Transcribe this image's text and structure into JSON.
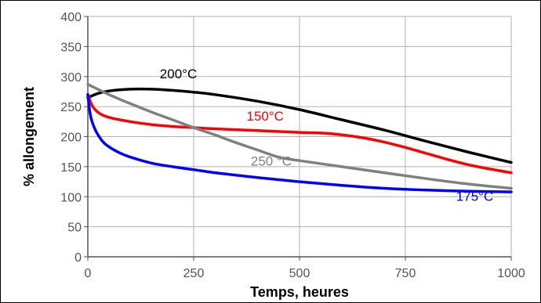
{
  "chart_data": {
    "type": "line",
    "xlabel": "Temps, heures",
    "ylabel": "% allongement",
    "xlim": [
      0,
      1000
    ],
    "ylim": [
      0,
      400
    ],
    "xticks": [
      0,
      250,
      500,
      750,
      1000
    ],
    "yticks": [
      0,
      50,
      100,
      150,
      200,
      250,
      300,
      350,
      400
    ],
    "grid": true,
    "series": [
      {
        "name": "200°C",
        "color": "#000000",
        "x": [
          0,
          25,
          50,
          100,
          150,
          200,
          250,
          300,
          400,
          500,
          600,
          700,
          800,
          900,
          1000
        ],
        "y": [
          265,
          272,
          276,
          279,
          279,
          277,
          274,
          270,
          259,
          245,
          228,
          211,
          192,
          174,
          157
        ]
      },
      {
        "name": "150°C",
        "color": "#ff0000",
        "x": [
          0,
          10,
          25,
          50,
          100,
          150,
          200,
          250,
          300,
          400,
          500,
          550,
          600,
          650,
          700,
          750,
          800,
          850,
          900,
          950,
          1000
        ],
        "y": [
          270,
          252,
          240,
          232,
          225,
          220,
          217,
          215,
          213,
          210,
          207,
          206,
          203,
          198,
          191,
          182,
          172,
          162,
          153,
          146,
          140
        ]
      },
      {
        "name": "250 °C",
        "color": "#808080",
        "x": [
          0,
          50,
          100,
          150,
          200,
          250,
          300,
          350,
          400,
          450,
          500,
          600,
          700,
          800,
          900,
          1000
        ],
        "y": [
          287,
          270,
          255,
          241,
          228,
          215,
          203,
          190,
          178,
          166,
          160,
          150,
          140,
          130,
          121,
          114
        ]
      },
      {
        "name": "175°C",
        "color": "#0000ff",
        "x": [
          0,
          5,
          10,
          20,
          35,
          50,
          75,
          100,
          150,
          200,
          250,
          300,
          400,
          500,
          600,
          700,
          800,
          900,
          1000
        ],
        "y": [
          270,
          240,
          225,
          208,
          192,
          183,
          173,
          166,
          156,
          150,
          145,
          140,
          132,
          125,
          119,
          114,
          111,
          109,
          108
        ]
      }
    ],
    "annotations": [
      {
        "text": "200°C",
        "series": 0,
        "x": 170,
        "y": 297
      },
      {
        "text": "150°C",
        "series": 1,
        "x": 375,
        "y": 227
      },
      {
        "text": "250 °C",
        "series": 2,
        "x": 385,
        "y": 152
      },
      {
        "text": "175°C",
        "series": 3,
        "x": 870,
        "y": 93
      }
    ]
  }
}
